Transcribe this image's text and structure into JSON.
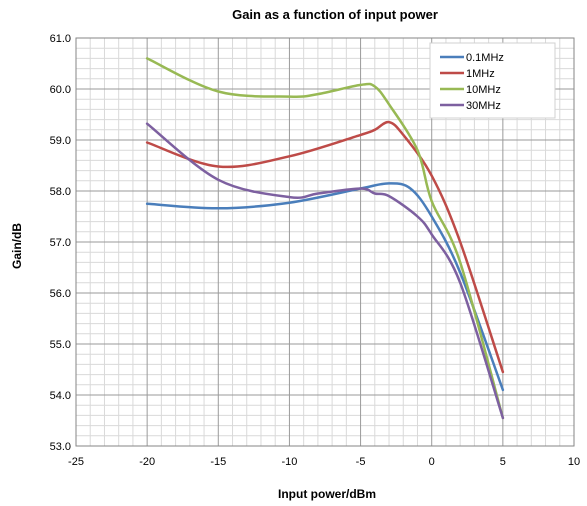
{
  "chart_data": {
    "type": "line",
    "title": "Gain as a function of input power",
    "xlabel": "Input power/dBm",
    "ylabel": "Gain/dB",
    "xlim": [
      -25,
      10
    ],
    "ylim": [
      53.0,
      61.0
    ],
    "xticks": [
      -25,
      -20,
      -15,
      -10,
      -5,
      0,
      5,
      10
    ],
    "xtick_labels": [
      "-25",
      "-20",
      "-15",
      "-10",
      "-5",
      "0",
      "5",
      "10"
    ],
    "yticks": [
      53.0,
      54.0,
      55.0,
      56.0,
      57.0,
      58.0,
      59.0,
      60.0,
      61.0
    ],
    "ytick_labels": [
      "53.0",
      "54.0",
      "55.0",
      "56.0",
      "57.0",
      "58.0",
      "59.0",
      "60.0",
      "61.0"
    ],
    "grid": true,
    "legend_position": "top-right",
    "series": [
      {
        "name": "0.1MHz",
        "color": "#4a7ebb",
        "points": [
          [
            -20,
            57.75
          ],
          [
            -15,
            57.66
          ],
          [
            -10,
            57.77
          ],
          [
            -5,
            58.05
          ],
          [
            -3,
            58.15
          ],
          [
            -1.5,
            58.05
          ],
          [
            0,
            57.5
          ],
          [
            2,
            56.4
          ],
          [
            5,
            54.1
          ]
        ]
      },
      {
        "name": "1MHz",
        "color": "#be4b48",
        "points": [
          [
            -20,
            58.95
          ],
          [
            -15,
            58.48
          ],
          [
            -10,
            58.68
          ],
          [
            -5,
            59.1
          ],
          [
            -4,
            59.2
          ],
          [
            -3,
            59.35
          ],
          [
            -2,
            59.1
          ],
          [
            0,
            58.3
          ],
          [
            2,
            57.0
          ],
          [
            5,
            54.45
          ]
        ]
      },
      {
        "name": "10MHz",
        "color": "#98b954",
        "points": [
          [
            -20,
            60.6
          ],
          [
            -15,
            59.95
          ],
          [
            -10,
            59.85
          ],
          [
            -8,
            59.9
          ],
          [
            -5,
            60.08
          ],
          [
            -4,
            60.05
          ],
          [
            -3,
            59.7
          ],
          [
            -1,
            58.8
          ],
          [
            0,
            57.8
          ],
          [
            2,
            56.6
          ],
          [
            5,
            53.55
          ]
        ]
      },
      {
        "name": "30MHz",
        "color": "#7d60a0",
        "points": [
          [
            -20,
            59.32
          ],
          [
            -15,
            58.22
          ],
          [
            -10,
            57.88
          ],
          [
            -8,
            57.95
          ],
          [
            -5,
            58.05
          ],
          [
            -4,
            57.95
          ],
          [
            -3,
            57.9
          ],
          [
            -1,
            57.5
          ],
          [
            0,
            57.15
          ],
          [
            2,
            56.2
          ],
          [
            5,
            53.55
          ]
        ]
      }
    ]
  }
}
